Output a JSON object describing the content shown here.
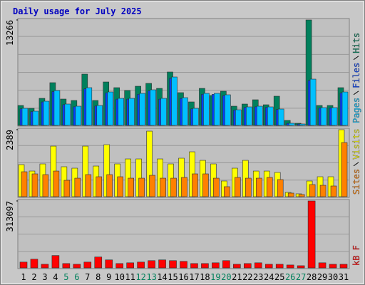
{
  "chart_data": [
    {
      "type": "bar",
      "title": "Daily usage for July 2025",
      "ylim": [
        0,
        13266
      ],
      "yticks": [
        13266
      ],
      "series": [
        {
          "name": "Hits",
          "color": "#00805c",
          "values": [
            2509,
            2150,
            3405,
            5376,
            3315,
            3136,
            6451,
            3136,
            5466,
            4749,
            4390,
            4928,
            5286,
            4659,
            6720,
            4122,
            2957,
            4659,
            3763,
            4301,
            2419,
            2688,
            3226,
            2598,
            3674,
            627,
            269,
            13266,
            2509,
            2509,
            4749
          ]
        },
        {
          "name": "Files",
          "color": "#0040ff",
          "values": [
            2080,
            1740,
            2950,
            4260,
            2610,
            2340,
            4600,
            2430,
            4080,
            3300,
            3300,
            3910,
            4350,
            3300,
            5910,
            3390,
            2080,
            3910,
            3910,
            3740,
            1910,
            2260,
            2340,
            2260,
            2000,
            260,
            170,
            5650,
            2170,
            2170,
            4080
          ]
        },
        {
          "name": "Pages",
          "color": "#00c0ff",
          "values": [
            2150,
            1792,
            3046,
            4390,
            2688,
            2419,
            4749,
            2509,
            4211,
            3405,
            3405,
            4032,
            4480,
            3405,
            6093,
            3494,
            2150,
            4032,
            4032,
            3853,
            1971,
            2330,
            2419,
            2330,
            2061,
            269,
            179,
            5824,
            2240,
            2240,
            4211
          ]
        }
      ]
    },
    {
      "type": "bar",
      "ylim": [
        0,
        2389
      ],
      "yticks": [
        2389
      ],
      "series": [
        {
          "name": "Visits",
          "color": "#ffff00",
          "values": [
            1143,
            914,
            1168,
            1803,
            1067,
            1016,
            1803,
            1092,
            1854,
            1168,
            1346,
            1346,
            2337,
            1346,
            1168,
            1372,
            1600,
            1295,
            1168,
            559,
            1016,
            1295,
            914,
            914,
            864,
            152,
            102,
            559,
            711,
            711,
            2389
          ]
        },
        {
          "name": "Sites",
          "color": "#ff8000",
          "values": [
            889,
            813,
            787,
            914,
            584,
            660,
            787,
            711,
            787,
            711,
            660,
            660,
            762,
            660,
            660,
            686,
            813,
            813,
            660,
            356,
            686,
            660,
            660,
            686,
            610,
            127,
            76,
            432,
            406,
            381,
            1930
          ]
        }
      ]
    },
    {
      "type": "bar",
      "ylim": [
        0,
        313097
      ],
      "yticks": [
        313097
      ],
      "categories": [
        "1",
        "2",
        "3",
        "4",
        "5",
        "6",
        "7",
        "8",
        "9",
        "10",
        "11",
        "12",
        "13",
        "14",
        "15",
        "16",
        "17",
        "18",
        "19",
        "20",
        "21",
        "22",
        "23",
        "24",
        "25",
        "26",
        "27",
        "28",
        "29",
        "30",
        "31"
      ],
      "category_colors": [
        "#000000",
        "#000000",
        "#000000",
        "#000000",
        "#00805c",
        "#00805c",
        "#000000",
        "#000000",
        "#000000",
        "#000000",
        "#000000",
        "#00805c",
        "#00805c",
        "#000000",
        "#000000",
        "#000000",
        "#000000",
        "#000000",
        "#00805c",
        "#00805c",
        "#000000",
        "#000000",
        "#000000",
        "#000000",
        "#000000",
        "#00805c",
        "#00805c",
        "#000000",
        "#000000",
        "#000000",
        "#000000"
      ],
      "series": [
        {
          "name": "kB F",
          "color": "#ff0000",
          "values": [
            27224,
            40836,
            17015,
            57851,
            20418,
            17015,
            27224,
            51045,
            37433,
            20418,
            23821,
            27224,
            34030,
            37433,
            34030,
            30627,
            20418,
            20418,
            23821,
            34030,
            17015,
            20418,
            23821,
            17015,
            17015,
            13612,
            10209,
            313097,
            23821,
            17015,
            17015
          ]
        }
      ]
    }
  ]
}
